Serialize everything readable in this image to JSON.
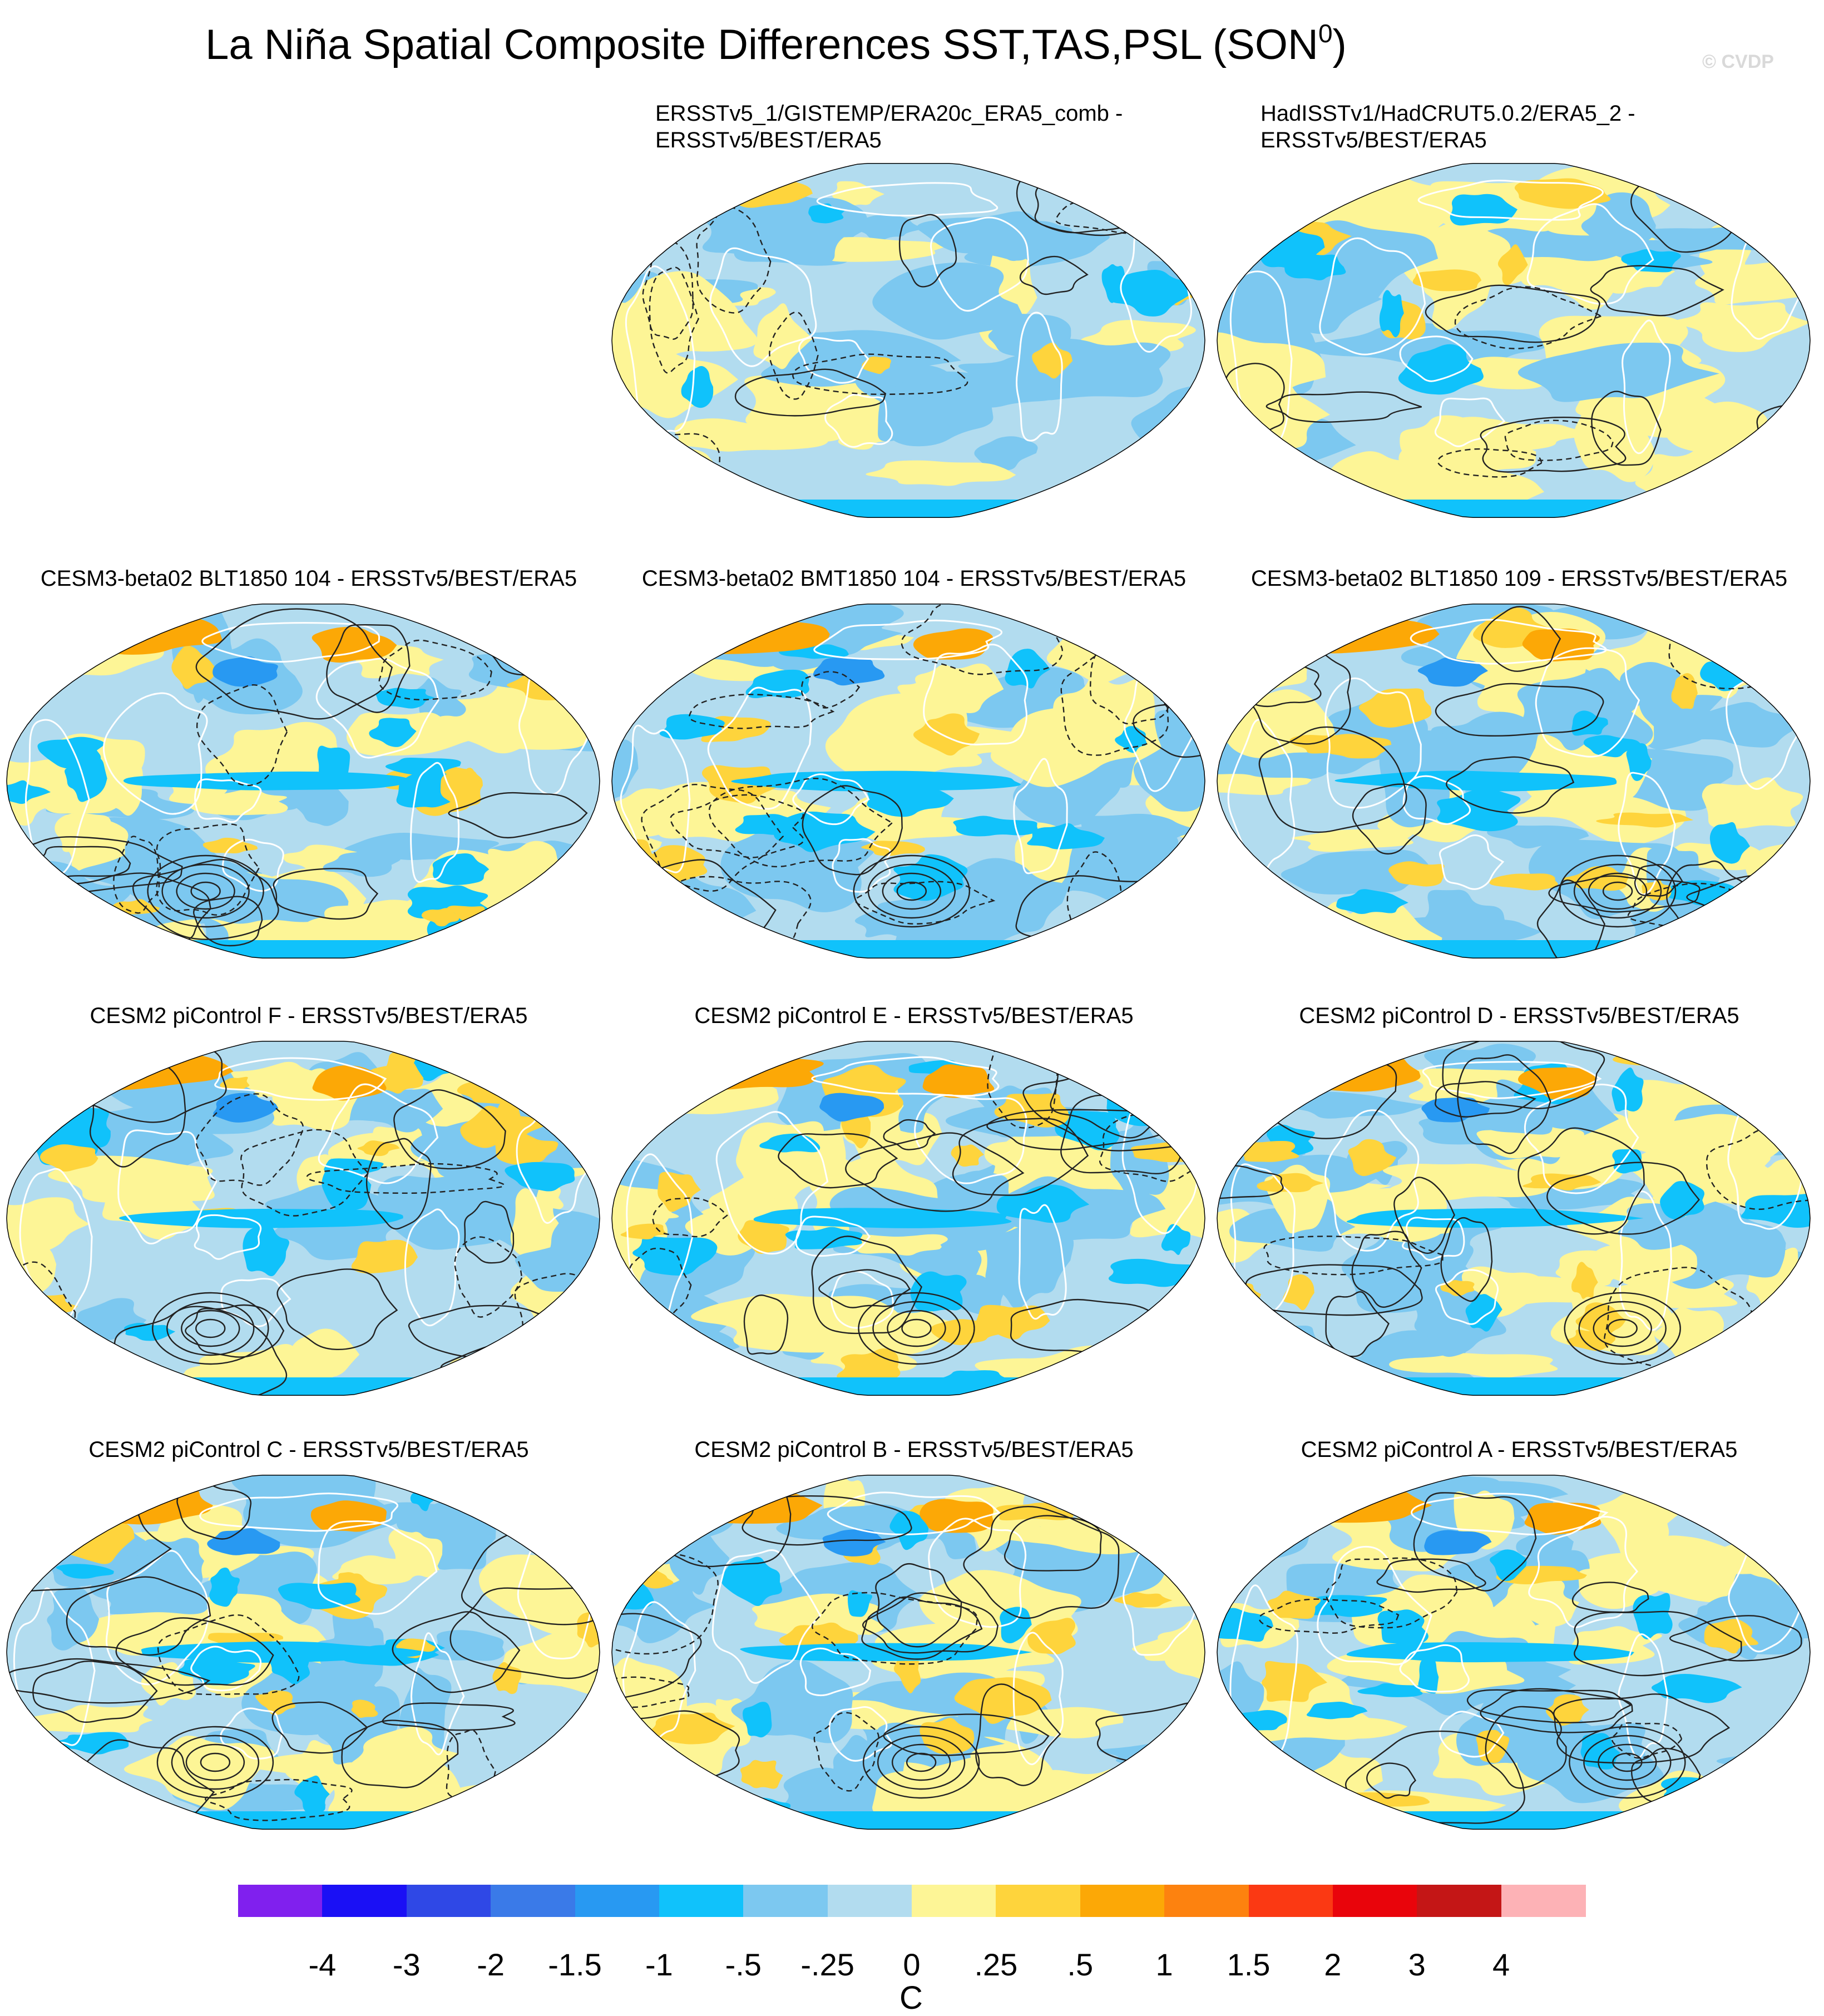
{
  "figure": {
    "title_main": "La Niña Spatial Composite Differences SST,TAS,PSL (SON",
    "title_sup": "0",
    "title_end": ")",
    "watermark": "© CVDP"
  },
  "colors": {
    "levels": [
      "#8020ee",
      "#1a10f5",
      "#2f48e6",
      "#3a7ae8",
      "#2899f2",
      "#10c2fb",
      "#7cc8f0",
      "#b2dcef",
      "#fdf596",
      "#fed43c",
      "#fca806",
      "#fd820f",
      "#fb3913",
      "#e9040b",
      "#c41616",
      "#fdb2b6"
    ],
    "contour": "#222222",
    "coast": "#ffffff"
  },
  "chart_data": {
    "type": "heatmap",
    "projection": "Robinson (global, Pacific-centered)",
    "variables": "SST/TAS shading, PSL contours (dashed negative)",
    "colorbar": {
      "ticks": [
        "-4",
        "-3",
        "-2",
        "-1.5",
        "-1",
        "-.5",
        "-.25",
        "0",
        ".25",
        ".5",
        "1",
        "1.5",
        "2",
        "3",
        "4"
      ],
      "units": "C"
    },
    "panels": [
      {
        "title": "ERSSTv5_1/GISTEMP/ERA20c_ERA5_comb -\nERSSTv5/BEST/ERA5",
        "pattern": "weak"
      },
      {
        "title": "HadISSTv1/HadCRUT5.0.2/ERA5_2 -\nERSSTv5/BEST/ERA5",
        "pattern": "weak"
      },
      {
        "title": "CESM3-beta02 BLT1850 104 - ERSSTv5/BEST/ERA5",
        "pattern": "strong"
      },
      {
        "title": "CESM3-beta02 BMT1850 104 - ERSSTv5/BEST/ERA5",
        "pattern": "strong"
      },
      {
        "title": "CESM3-beta02 BLT1850 109 - ERSSTv5/BEST/ERA5",
        "pattern": "strong"
      },
      {
        "title": "CESM2 piControl F - ERSSTv5/BEST/ERA5",
        "pattern": "strong"
      },
      {
        "title": "CESM2 piControl E - ERSSTv5/BEST/ERA5",
        "pattern": "strong"
      },
      {
        "title": "CESM2 piControl D - ERSSTv5/BEST/ERA5",
        "pattern": "strong"
      },
      {
        "title": "CESM2 piControl C - ERSSTv5/BEST/ERA5",
        "pattern": "strong"
      },
      {
        "title": "CESM2 piControl B - ERSSTv5/BEST/ERA5",
        "pattern": "strong"
      },
      {
        "title": "CESM2 piControl A - ERSSTv5/BEST/ERA5",
        "pattern": "strong"
      }
    ]
  }
}
